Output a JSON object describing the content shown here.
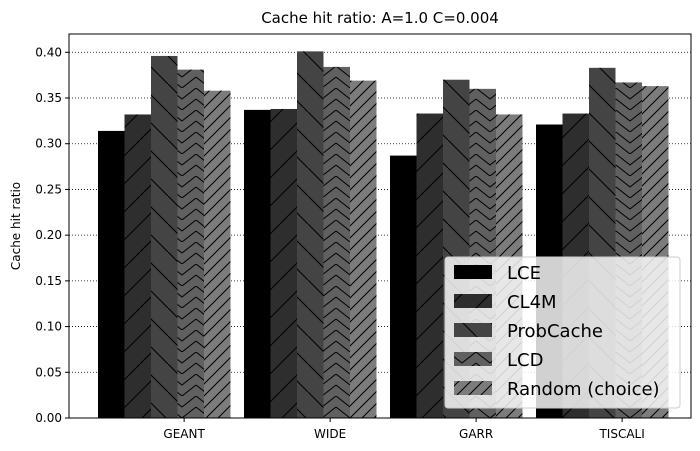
{
  "chart_data": {
    "type": "bar",
    "title": "Cache hit ratio: A=1.0 C=0.004",
    "xlabel": "",
    "ylabel": "Cache hit ratio",
    "ylim": [
      0,
      0.42
    ],
    "yticks": [
      "0.00",
      "0.05",
      "0.10",
      "0.15",
      "0.20",
      "0.25",
      "0.30",
      "0.35",
      "0.40"
    ],
    "grid": "horizontal dotted",
    "legend_position": "bottom-right",
    "categories": [
      "GEANT",
      "WIDE",
      "GARR",
      "TISCALI"
    ],
    "series": [
      {
        "name": "LCE",
        "color": "#000000",
        "hatch": "none",
        "values": [
          0.314,
          0.337,
          0.287,
          0.321
        ]
      },
      {
        "name": "CL4M",
        "color": "#2e2e2e",
        "hatch": "forward-slash",
        "values": [
          0.332,
          0.338,
          0.333,
          0.333
        ]
      },
      {
        "name": "ProbCache",
        "color": "#444444",
        "hatch": "back-slash",
        "values": [
          0.396,
          0.401,
          0.37,
          0.383
        ]
      },
      {
        "name": "LCD",
        "color": "#606060",
        "hatch": "chevron",
        "values": [
          0.381,
          0.384,
          0.36,
          0.367
        ]
      },
      {
        "name": "Random (choice)",
        "color": "#7c7c7c",
        "hatch": "double-slash",
        "values": [
          0.358,
          0.369,
          0.332,
          0.363
        ]
      }
    ]
  }
}
